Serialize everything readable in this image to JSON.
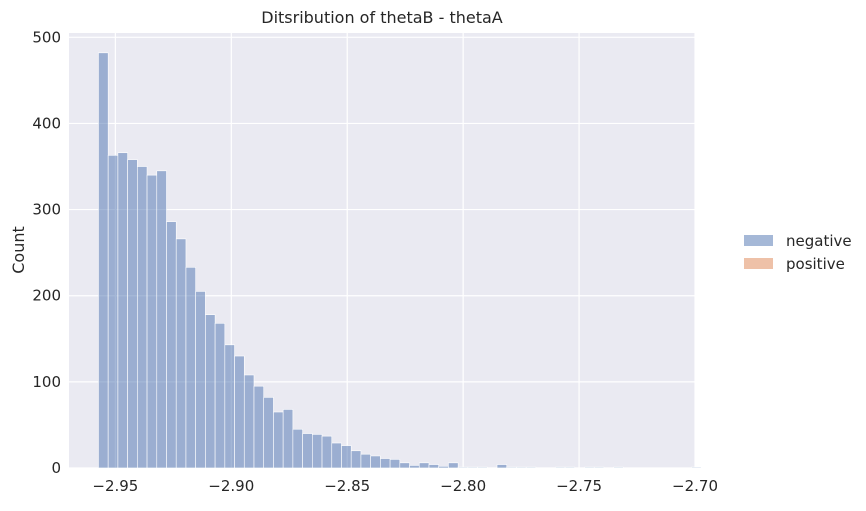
{
  "chart_data": {
    "type": "histogram",
    "title": "Ditsribution of thetaB - thetaA",
    "xlabel": "",
    "ylabel": "Count",
    "xlim": [
      -2.97,
      -2.7
    ],
    "ylim": [
      0,
      505
    ],
    "grid": true,
    "legend_position": "right",
    "x_ticks": [
      -2.95,
      -2.9,
      -2.85,
      -2.8,
      -2.75,
      -2.7
    ],
    "x_tick_labels": [
      "−2.95",
      "−2.90",
      "−2.85",
      "−2.80",
      "−2.75",
      "−2.70"
    ],
    "y_ticks": [
      0,
      100,
      200,
      300,
      400,
      500
    ],
    "y_tick_labels": [
      "0",
      "100",
      "200",
      "300",
      "400",
      "500"
    ],
    "bin_start": -2.9573,
    "bin_width": 0.004193,
    "series": [
      {
        "name": "negative",
        "color": "#4c72b0",
        "counts": [
          482,
          363,
          366,
          358,
          350,
          340,
          345,
          286,
          266,
          233,
          205,
          178,
          168,
          143,
          130,
          108,
          95,
          82,
          65,
          68,
          45,
          40,
          39,
          37,
          29,
          26,
          20,
          16,
          14,
          11,
          10,
          6,
          3,
          6,
          4,
          2,
          6,
          1,
          1,
          1,
          0,
          4,
          1,
          1,
          1,
          0,
          0,
          1,
          1,
          0,
          1,
          1,
          0,
          1,
          0,
          0,
          0,
          0,
          0,
          0,
          0,
          1
        ]
      },
      {
        "name": "positive",
        "color": "#dd8452",
        "counts": []
      }
    ]
  }
}
